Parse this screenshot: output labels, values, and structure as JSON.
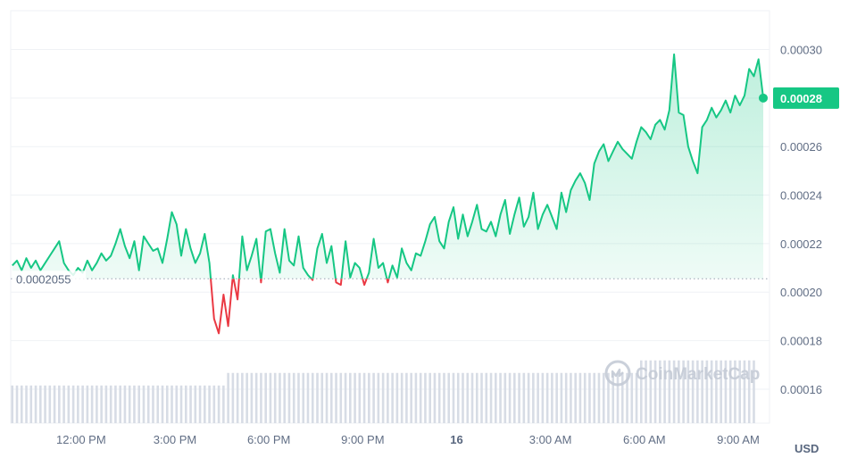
{
  "chart_data": {
    "type": "line",
    "y_ticks": [
      "0.00016",
      "0.00018",
      "0.00020",
      "0.00022",
      "0.00024",
      "0.00026",
      "0.00028",
      "0.00030"
    ],
    "ylim": [
      0.000146,
      0.000316
    ],
    "x_ticks": [
      "12:00 PM",
      "3:00 PM",
      "6:00 PM",
      "9:00 PM",
      "16",
      "3:00 AM",
      "6:00 AM",
      "9:00 AM"
    ],
    "x_ticks_hours": [
      1,
      4,
      7,
      10,
      13,
      16,
      19,
      22
    ],
    "x_range_hours": [
      -1.25,
      23.0
    ],
    "bold_tick": "16",
    "currency": "USD",
    "reference_price": 0.0002055,
    "reference_label": "0.0002055",
    "current_price": 0.00028,
    "current_label": "0.00028",
    "watermark": "CoinMarketCap",
    "colors": {
      "up": "#16c784",
      "down": "#ea3943",
      "grid": "#eff2f5",
      "volume": "#d7dce5",
      "label_bg": "#16c784"
    },
    "series": [
      {
        "x": [
          -1.2,
          -1.05,
          -0.9,
          -0.75,
          -0.6,
          -0.45,
          -0.3,
          -0.15,
          0.0,
          0.15,
          0.3,
          0.45,
          0.6,
          0.75,
          0.9,
          1.05,
          1.2,
          1.35,
          1.5,
          1.65,
          1.8,
          1.95,
          2.1,
          2.25,
          2.4,
          2.55,
          2.7,
          2.85,
          3.0,
          3.15,
          3.3,
          3.45,
          3.6,
          3.75,
          3.9,
          4.05,
          4.2,
          4.35,
          4.5,
          4.65,
          4.8,
          4.95,
          5.1,
          5.25,
          5.4,
          5.55,
          5.7,
          5.85,
          6.0,
          6.15,
          6.3,
          6.45,
          6.6,
          6.75,
          6.9,
          7.05,
          7.2,
          7.35,
          7.5,
          7.65,
          7.8,
          7.95,
          8.1,
          8.25,
          8.4,
          8.55,
          8.7,
          8.85,
          9.0,
          9.15,
          9.3,
          9.45,
          9.6,
          9.75,
          9.9,
          10.05,
          10.2,
          10.35,
          10.5,
          10.65,
          10.8,
          10.95,
          11.1,
          11.25,
          11.4,
          11.55,
          11.7,
          11.85,
          12.0,
          12.15,
          12.3,
          12.45,
          12.6,
          12.75,
          12.9,
          13.05,
          13.2,
          13.35,
          13.5,
          13.65,
          13.8,
          13.95,
          14.1,
          14.25,
          14.4,
          14.55,
          14.7,
          14.85,
          15.0,
          15.15,
          15.3,
          15.45,
          15.6,
          15.75,
          15.9,
          16.05,
          16.2,
          16.35,
          16.5,
          16.65,
          16.8,
          16.95,
          17.1,
          17.25,
          17.4,
          17.55,
          17.7,
          17.85,
          18.0,
          18.15,
          18.3,
          18.45,
          18.6,
          18.75,
          18.9,
          19.05,
          19.2,
          19.35,
          19.5,
          19.65,
          19.8,
          19.95,
          20.1,
          20.25,
          20.4,
          20.55,
          20.7,
          20.85,
          21.0,
          21.15,
          21.3,
          21.45,
          21.6,
          21.75,
          21.9,
          22.05,
          22.2,
          22.35,
          22.5,
          22.65,
          22.8
        ],
        "values": [
          0.000211,
          0.000213,
          0.000209,
          0.000214,
          0.00021,
          0.000213,
          0.000209,
          0.000212,
          0.000215,
          0.000218,
          0.000221,
          0.000212,
          0.000209,
          0.000207,
          0.00021,
          0.000208,
          0.000213,
          0.000209,
          0.000212,
          0.000216,
          0.000213,
          0.000215,
          0.00022,
          0.000226,
          0.000219,
          0.000214,
          0.000221,
          0.000209,
          0.000223,
          0.00022,
          0.000217,
          0.000218,
          0.000212,
          0.000222,
          0.000233,
          0.000228,
          0.000215,
          0.000226,
          0.000218,
          0.000212,
          0.000216,
          0.000224,
          0.000212,
          0.000189,
          0.000183,
          0.000199,
          0.000186,
          0.000207,
          0.000197,
          0.000223,
          0.000209,
          0.000215,
          0.000222,
          0.000204,
          0.000225,
          0.000226,
          0.000216,
          0.000208,
          0.000226,
          0.000213,
          0.000211,
          0.000223,
          0.00021,
          0.000207,
          0.000205,
          0.000218,
          0.000224,
          0.000212,
          0.000219,
          0.000204,
          0.000203,
          0.000221,
          0.000206,
          0.000212,
          0.00021,
          0.000203,
          0.000208,
          0.000222,
          0.00021,
          0.000212,
          0.000204,
          0.000211,
          0.000206,
          0.000218,
          0.000212,
          0.000209,
          0.000216,
          0.000215,
          0.000221,
          0.000228,
          0.000231,
          0.000221,
          0.000218,
          0.000229,
          0.000235,
          0.000222,
          0.000232,
          0.000223,
          0.000229,
          0.000236,
          0.000226,
          0.000225,
          0.000229,
          0.000223,
          0.000232,
          0.000238,
          0.000224,
          0.000232,
          0.000239,
          0.000227,
          0.000231,
          0.000241,
          0.000226,
          0.000232,
          0.000236,
          0.000231,
          0.000226,
          0.000241,
          0.000233,
          0.000242,
          0.000246,
          0.000249,
          0.000245,
          0.000238,
          0.000253,
          0.000258,
          0.000261,
          0.000254,
          0.000258,
          0.000262,
          0.000259,
          0.000257,
          0.000255,
          0.000262,
          0.000268,
          0.000266,
          0.000263,
          0.000269,
          0.000271,
          0.000267,
          0.000275,
          0.000298,
          0.000274,
          0.000273,
          0.00026,
          0.000254,
          0.000249,
          0.000268,
          0.000271,
          0.000276,
          0.000272,
          0.000275,
          0.000279,
          0.000274,
          0.000281,
          0.000277,
          0.000281,
          0.000292,
          0.000289,
          0.000296,
          0.00028
        ]
      }
    ],
    "volume": {
      "x": [
        -1.2,
        -1.05,
        -0.9,
        -0.75,
        -0.6,
        -0.45,
        -0.3,
        -0.15,
        0.0,
        0.15,
        0.3,
        0.45,
        0.6,
        0.75,
        0.9,
        1.05,
        1.2,
        1.35,
        1.5,
        1.65,
        1.8,
        1.95,
        2.1,
        2.25,
        2.4,
        2.55,
        2.7,
        2.85,
        3.0,
        3.15,
        3.3,
        3.45,
        3.6,
        3.75,
        3.9,
        4.05,
        4.2,
        4.35,
        4.5,
        4.65,
        4.8,
        4.95,
        5.1,
        5.25,
        5.4,
        5.55,
        5.7,
        5.85,
        6.0,
        6.15,
        6.3,
        6.45,
        6.6,
        6.75,
        6.9,
        7.05,
        7.2,
        7.35,
        7.5,
        7.65,
        7.8,
        7.95,
        8.1,
        8.25,
        8.4,
        8.55,
        8.7,
        8.85,
        9.0,
        9.15,
        9.3,
        9.45,
        9.6,
        9.75,
        9.9,
        10.05,
        10.2,
        10.35,
        10.5,
        10.65,
        10.8,
        10.95,
        11.1,
        11.25,
        11.4,
        11.55,
        11.7,
        11.85,
        12.0,
        12.15,
        12.3,
        12.45,
        12.6,
        12.75,
        12.9,
        13.05,
        13.2,
        13.35,
        13.5,
        13.65,
        13.8,
        13.95,
        14.1,
        14.25,
        14.4,
        14.55,
        14.7,
        14.85,
        15.0,
        15.15,
        15.3,
        15.45,
        15.6,
        15.75,
        15.9,
        16.05,
        16.2,
        16.35,
        16.5,
        16.65,
        16.8,
        16.95,
        17.1,
        17.25,
        17.4,
        17.55,
        17.7,
        17.85,
        18.0,
        18.15,
        18.3,
        18.45,
        18.6,
        18.75,
        18.9,
        19.05,
        19.2,
        19.35,
        19.5,
        19.65,
        19.8,
        19.95,
        20.1,
        20.25,
        20.4,
        20.55,
        20.7,
        20.85,
        21.0,
        21.15,
        21.3,
        21.45,
        21.6,
        21.75,
        21.9,
        22.05,
        22.2,
        22.35,
        22.5,
        22.65,
        22.8
      ],
      "levels": [
        0.3,
        0.3,
        0.3,
        0.3,
        0.3,
        0.3,
        0.3,
        0.3,
        0.3,
        0.3,
        0.3,
        0.3,
        0.3,
        0.3,
        0.3,
        0.3,
        0.3,
        0.3,
        0.3,
        0.3,
        0.3,
        0.3,
        0.3,
        0.3,
        0.3,
        0.3,
        0.3,
        0.3,
        0.3,
        0.3,
        0.3,
        0.3,
        0.3,
        0.3,
        0.3,
        0.3,
        0.3,
        0.3,
        0.3,
        0.3,
        0.3,
        0.3,
        0.3,
        0.3,
        0.3,
        0.3,
        0.4,
        0.4,
        0.4,
        0.4,
        0.4,
        0.4,
        0.4,
        0.4,
        0.4,
        0.4,
        0.4,
        0.4,
        0.4,
        0.4,
        0.4,
        0.4,
        0.4,
        0.4,
        0.4,
        0.4,
        0.4,
        0.4,
        0.4,
        0.4,
        0.4,
        0.4,
        0.4,
        0.4,
        0.4,
        0.4,
        0.4,
        0.4,
        0.4,
        0.4,
        0.4,
        0.4,
        0.4,
        0.4,
        0.4,
        0.4,
        0.4,
        0.4,
        0.4,
        0.4,
        0.4,
        0.4,
        0.4,
        0.4,
        0.4,
        0.4,
        0.4,
        0.4,
        0.4,
        0.4,
        0.4,
        0.4,
        0.4,
        0.4,
        0.4,
        0.4,
        0.4,
        0.4,
        0.4,
        0.4,
        0.4,
        0.4,
        0.4,
        0.4,
        0.4,
        0.4,
        0.4,
        0.4,
        0.4,
        0.4,
        0.4,
        0.4,
        0.4,
        0.4,
        0.4,
        0.4,
        0.4,
        0.4,
        0.4,
        0.4,
        0.4,
        0.4,
        0.4,
        0.4,
        0.5,
        0.5,
        0.5,
        0.5,
        0.5,
        0.5,
        0.5,
        0.5,
        0.5,
        0.5,
        0.5,
        0.5,
        0.5,
        0.5,
        0.5,
        0.5,
        0.5,
        0.5,
        0.5,
        0.5,
        0.5,
        0.5,
        0.5,
        0.5,
        0.5
      ]
    }
  }
}
